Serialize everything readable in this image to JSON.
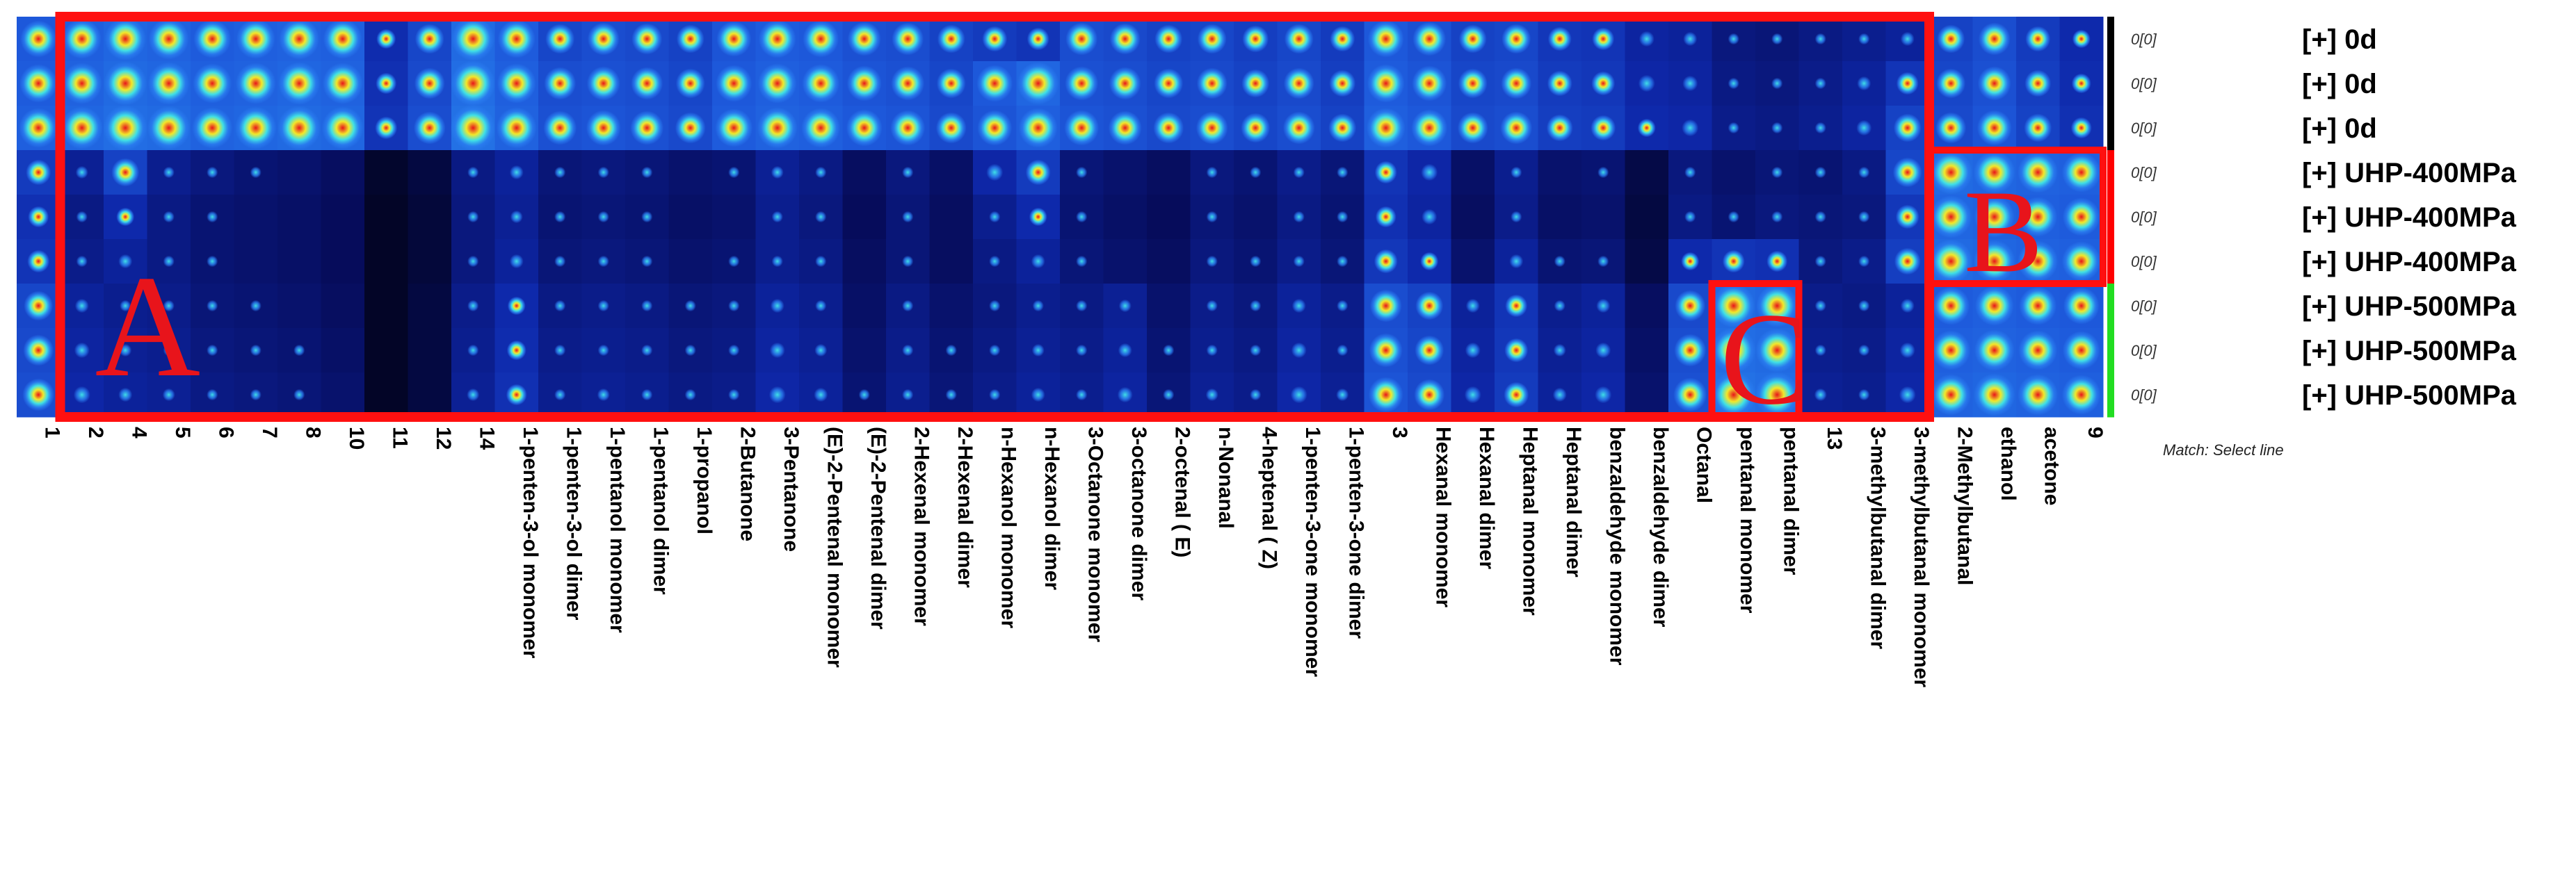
{
  "chart_data": {
    "type": "heatmap",
    "title": "",
    "colors": {
      "low": "#000000",
      "mid1": "#0a1ea8",
      "mid2": "#2a7df0",
      "mid3": "#3fe0e6",
      "mid4": "#f2e82a",
      "high": "#e8141b",
      "outline": "#ff1010"
    },
    "columns": [
      "1",
      "2",
      "4",
      "5",
      "6",
      "7",
      "8",
      "10",
      "11",
      "12",
      "14",
      "1-penten-3-ol monomer",
      "1-penten-3-ol dimer",
      "1-pentanol monomer",
      "1-pentanol dimer",
      "1-propanol",
      "2-Butanone",
      "3-Pentanone",
      "(E)-2-Pentenal monomer",
      "(E)-2-Pentenal dimer",
      "2-Hexenal monomer",
      "2-Hexenal dimer",
      "n-Hexanol monomer",
      "n-Hexanol dimer",
      "3-Octanone monomer",
      "3-octanone dimer",
      "2-octenal ( E)",
      "n-Nonanal",
      "4-heptenal ( Z)",
      "1-penten-3-one monomer",
      "1-penten-3-one dimer",
      "3",
      "Hexanal monomer",
      "Hexanal dimer",
      "Heptanal monomer",
      "Heptanal dimer",
      "benzaldehyde monomer",
      "benzaldehyde dimer",
      "Octanal",
      "pentanal monomer",
      "pentanal dimer",
      "13",
      "3-methylbutanal dimer",
      "3-methylbutanal monomer",
      "2-Methylbutanal",
      "ethanol",
      "acetone",
      "9"
    ],
    "rows": [
      {
        "label": "[+] 0d",
        "tag": "0[0]",
        "group": "0d"
      },
      {
        "label": "[+] 0d",
        "tag": "0[0]",
        "group": "0d"
      },
      {
        "label": "[+] 0d",
        "tag": "0[0]",
        "group": "0d"
      },
      {
        "label": "[+] UHP-400MPa",
        "tag": "0[0]",
        "group": "UHP-400MPa"
      },
      {
        "label": "[+] UHP-400MPa",
        "tag": "0[0]",
        "group": "UHP-400MPa"
      },
      {
        "label": "[+] UHP-400MPa",
        "tag": "0[0]",
        "group": "UHP-400MPa"
      },
      {
        "label": "[+] UHP-500MPa",
        "tag": "0[0]",
        "group": "UHP-500MPa"
      },
      {
        "label": "[+] UHP-500MPa",
        "tag": "0[0]",
        "group": "UHP-500MPa"
      },
      {
        "label": "[+] UHP-500MPa",
        "tag": "0[0]",
        "group": "UHP-500MPa"
      }
    ],
    "group_colors": {
      "0d": "#000000",
      "UHP-400MPa": "#ff0000",
      "UHP-500MPa": "#22dd22"
    },
    "intensity_scale": [
      0,
      1
    ],
    "values": [
      [
        0.82,
        0.86,
        0.9,
        0.88,
        0.84,
        0.86,
        0.88,
        0.86,
        0.58,
        0.72,
        0.92,
        0.84,
        0.72,
        0.76,
        0.74,
        0.7,
        0.8,
        0.84,
        0.82,
        0.78,
        0.76,
        0.7,
        0.66,
        0.62,
        0.76,
        0.74,
        0.7,
        0.72,
        0.68,
        0.72,
        0.66,
        0.82,
        0.78,
        0.7,
        0.72,
        0.64,
        0.62,
        0.52,
        0.5,
        0.4,
        0.38,
        0.42,
        0.46,
        0.5,
        0.7,
        0.76,
        0.66,
        0.56
      ],
      [
        0.84,
        0.88,
        0.92,
        0.9,
        0.86,
        0.88,
        0.9,
        0.88,
        0.6,
        0.74,
        0.94,
        0.86,
        0.76,
        0.78,
        0.76,
        0.72,
        0.82,
        0.86,
        0.84,
        0.8,
        0.78,
        0.72,
        0.82,
        0.9,
        0.78,
        0.76,
        0.72,
        0.74,
        0.7,
        0.74,
        0.68,
        0.84,
        0.8,
        0.72,
        0.74,
        0.66,
        0.64,
        0.54,
        0.52,
        0.42,
        0.4,
        0.44,
        0.5,
        0.62,
        0.72,
        0.78,
        0.68,
        0.58
      ],
      [
        0.86,
        0.9,
        0.94,
        0.92,
        0.88,
        0.9,
        0.92,
        0.9,
        0.62,
        0.76,
        0.96,
        0.88,
        0.78,
        0.8,
        0.78,
        0.74,
        0.84,
        0.88,
        0.86,
        0.82,
        0.8,
        0.74,
        0.8,
        0.86,
        0.8,
        0.78,
        0.74,
        0.76,
        0.72,
        0.76,
        0.7,
        0.86,
        0.82,
        0.74,
        0.76,
        0.68,
        0.66,
        0.56,
        0.54,
        0.44,
        0.42,
        0.46,
        0.52,
        0.7,
        0.74,
        0.8,
        0.7,
        0.6
      ],
      [
        0.66,
        0.48,
        0.7,
        0.46,
        0.4,
        0.36,
        0.34,
        0.3,
        0.14,
        0.2,
        0.42,
        0.5,
        0.38,
        0.4,
        0.38,
        0.34,
        0.36,
        0.48,
        0.42,
        0.3,
        0.4,
        0.32,
        0.54,
        0.66,
        0.38,
        0.34,
        0.3,
        0.4,
        0.36,
        0.44,
        0.38,
        0.62,
        0.54,
        0.32,
        0.46,
        0.34,
        0.36,
        0.22,
        0.4,
        0.34,
        0.38,
        0.36,
        0.42,
        0.72,
        0.92,
        0.9,
        0.88,
        0.86
      ],
      [
        0.6,
        0.42,
        0.56,
        0.42,
        0.36,
        0.34,
        0.32,
        0.28,
        0.12,
        0.18,
        0.4,
        0.48,
        0.36,
        0.38,
        0.36,
        0.32,
        0.34,
        0.46,
        0.4,
        0.28,
        0.38,
        0.3,
        0.46,
        0.56,
        0.36,
        0.32,
        0.28,
        0.38,
        0.34,
        0.42,
        0.36,
        0.6,
        0.52,
        0.3,
        0.44,
        0.32,
        0.34,
        0.2,
        0.42,
        0.36,
        0.4,
        0.38,
        0.4,
        0.64,
        0.9,
        0.88,
        0.86,
        0.84
      ],
      [
        0.62,
        0.44,
        0.5,
        0.42,
        0.36,
        0.34,
        0.32,
        0.28,
        0.12,
        0.18,
        0.4,
        0.5,
        0.38,
        0.4,
        0.38,
        0.34,
        0.36,
        0.46,
        0.42,
        0.3,
        0.38,
        0.3,
        0.42,
        0.5,
        0.38,
        0.34,
        0.3,
        0.4,
        0.36,
        0.44,
        0.38,
        0.64,
        0.56,
        0.34,
        0.5,
        0.36,
        0.38,
        0.22,
        0.56,
        0.62,
        0.6,
        0.4,
        0.44,
        0.68,
        0.92,
        0.9,
        0.88,
        0.86
      ],
      [
        0.72,
        0.5,
        0.46,
        0.44,
        0.38,
        0.36,
        0.34,
        0.3,
        0.12,
        0.2,
        0.44,
        0.56,
        0.42,
        0.44,
        0.42,
        0.38,
        0.4,
        0.5,
        0.46,
        0.32,
        0.42,
        0.34,
        0.4,
        0.46,
        0.42,
        0.48,
        0.34,
        0.44,
        0.4,
        0.5,
        0.44,
        0.76,
        0.7,
        0.5,
        0.62,
        0.46,
        0.5,
        0.3,
        0.74,
        0.92,
        0.9,
        0.44,
        0.42,
        0.5,
        0.84,
        0.86,
        0.84,
        0.82
      ],
      [
        0.74,
        0.52,
        0.48,
        0.46,
        0.4,
        0.38,
        0.36,
        0.32,
        0.12,
        0.2,
        0.46,
        0.58,
        0.44,
        0.46,
        0.44,
        0.4,
        0.42,
        0.52,
        0.48,
        0.34,
        0.44,
        0.36,
        0.42,
        0.48,
        0.44,
        0.5,
        0.36,
        0.46,
        0.42,
        0.52,
        0.46,
        0.78,
        0.72,
        0.52,
        0.64,
        0.48,
        0.52,
        0.32,
        0.76,
        0.94,
        0.92,
        0.46,
        0.44,
        0.52,
        0.86,
        0.88,
        0.86,
        0.84
      ],
      [
        0.76,
        0.54,
        0.5,
        0.48,
        0.42,
        0.4,
        0.38,
        0.34,
        0.12,
        0.2,
        0.48,
        0.6,
        0.46,
        0.48,
        0.46,
        0.42,
        0.44,
        0.54,
        0.5,
        0.36,
        0.46,
        0.38,
        0.44,
        0.5,
        0.46,
        0.52,
        0.38,
        0.48,
        0.44,
        0.54,
        0.48,
        0.8,
        0.74,
        0.54,
        0.66,
        0.5,
        0.54,
        0.34,
        0.78,
        0.96,
        0.94,
        0.48,
        0.46,
        0.54,
        0.88,
        0.9,
        0.88,
        0.86
      ]
    ],
    "annotations": [
      {
        "text": "A",
        "label": "region A",
        "from_column": "2",
        "to_column": "3-methylbutanal monomer",
        "rows": "all"
      },
      {
        "text": "B",
        "label": "region B",
        "from_column": "2-Methylbutanal",
        "to_column": "9",
        "rows": "UHP-400MPa"
      },
      {
        "text": "C",
        "label": "region C",
        "from_column": "pentanal monomer",
        "to_column": "pentanal dimer",
        "rows": "UHP-500MPa"
      }
    ],
    "note": "Match: Select line",
    "legend": "right"
  }
}
